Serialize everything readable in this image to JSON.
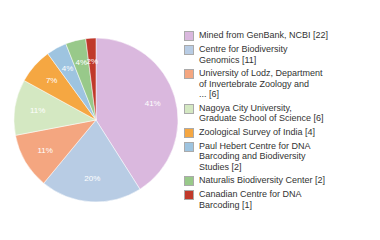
{
  "chart_data": {
    "type": "pie",
    "labels": [
      "Mined from GenBank, NCBI [22]",
      "Centre for Biodiversity\nGenomics [11]",
      "University of Lodz, Department\nof Invertebrate Zoology and\n... [6]",
      "Nagoya City University,\nGraduate School of Science [6]",
      "Zoological Survey of India [4]",
      "Paul Hebert Centre for DNA\nBarcoding and Biodiversity\nStudies [2]",
      "Naturalis Biodiversity Center [2]",
      "Canadian Centre for DNA\nBarcoding [1]"
    ],
    "values": [
      41,
      20,
      11,
      11,
      7,
      4,
      4,
      2
    ],
    "value_labels": [
      "41%",
      "20%",
      "11%",
      "11%",
      "7%",
      "4%",
      "4%",
      "2%"
    ],
    "colors": [
      "#dab8de",
      "#b8cce4",
      "#f4a680",
      "#d4e8c2",
      "#f5a742",
      "#9ec4e0",
      "#98c98a",
      "#c0392b"
    ],
    "data_labels": true,
    "legend": "right"
  }
}
